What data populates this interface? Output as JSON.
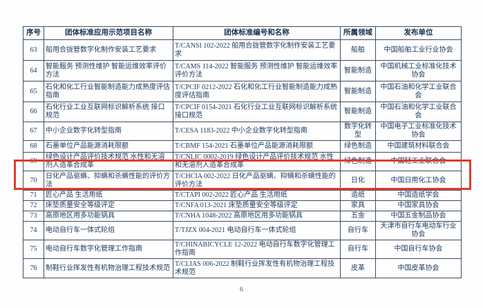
{
  "page": {
    "number": "6"
  },
  "colors": {
    "highlight_red": "#e23b2e",
    "text_navy": "#1e3d61",
    "border": "#3f4c5e"
  },
  "table": {
    "headers": [
      "序号",
      "团体标准应用示范项目名称",
      "团体标准编号和名称",
      "所属领域",
      "发布单位"
    ],
    "highlight": {
      "row_no": "70",
      "color": "#e23b2e"
    },
    "rows": [
      {
        "no": "63",
        "project": "船用合拢管数字化制作安装工艺要求",
        "standard": "T/CANSI 102-2022 船用合拢管数字化制作安装工艺要求",
        "field": "船舶",
        "publisher": "中国船舶工业行业协会"
      },
      {
        "no": "64",
        "project": "智能服务 预测性维护 智能运维效率评价方法",
        "standard": "T/CAMS 114-2022 智能服务 预测性维护 智能运维效率评价方法",
        "field": "智能制造",
        "publisher": "中国机械工业标准化技术协会"
      },
      {
        "no": "65",
        "project": "石化和化工行业智能制造能力成熟度评估指南",
        "standard": "T/CPCIF 0212-2022 石化和化工行业智能制造能力成熟度评估指南",
        "field": "智能制造",
        "publisher": "中国石油和化学工业联合会"
      },
      {
        "no": "66",
        "project": "石化行业工业互联网标识解析系统 接口规范",
        "standard": "T/CPCIF 0154-2021 石化行业工业互联网标识解析系统 接口规范",
        "field": "智能制造",
        "publisher": "中国石油和化学工业联合会"
      },
      {
        "no": "67",
        "project": "中小企业数字化转型指南",
        "standard": "T/CESA 1183-2022 中小企业数字化转型指南",
        "field": "数字化转型",
        "publisher": "中国电子工业标准化技术协会"
      },
      {
        "no": "68",
        "project": "石墨单位产品能源消耗限额",
        "standard": "T/CBMF 154-2021 石墨单位产品能源消耗限额",
        "field": "绿色制造",
        "publisher": "中国建筑材料联合会"
      },
      {
        "no": "69",
        "project": "绿色设计产品评价技术规范 水性和无溶剂人造革合成革",
        "standard": "T/CNLIC 0002-2019 绿色设计产品评价技术规范 水性和无溶剂人造革合成革",
        "field": "绿色制造",
        "publisher": "中国轻工业联合会"
      },
      {
        "no": "70",
        "project": "日化产品驱螨、抑螨和杀螨性能的评价方法",
        "standard": "T/CHCIA 002-2022 日化产品驱螨、抑螨和杀螨性能的评价方法",
        "field": "日化",
        "publisher": "中国日用化工协会"
      },
      {
        "no": "71",
        "project": "匠心产品 生活用纸",
        "standard": "T/CTAPI 002-2022 匠心产品 生活用纸",
        "field": "造纸",
        "publisher": "中国造纸学会"
      },
      {
        "no": "72",
        "project": "床垫质量安全等级评定",
        "standard": "T/CNFA 013-2021 床垫质量安全等级评定",
        "field": "家具",
        "publisher": "中国家具协会"
      },
      {
        "no": "73",
        "project": "高原地区用多功能锅具",
        "standard": "T/CNHA 1048-2022 高原地区用多功能锅具",
        "field": "五金",
        "publisher": "中国五金制品协会"
      },
      {
        "no": "74",
        "project": "电动自行车一体式轮组",
        "standard": "T/TJZX 004-2021 电动自行车一体式轮组",
        "field": "自行车",
        "publisher": "天津市自行车电动车行业协会"
      },
      {
        "no": "75",
        "project": "电动自行车数字化管理工作指南",
        "standard": "T/CHINABICYCLE 12-2022 电动自行车数字化管理工作指南",
        "field": "自行车",
        "publisher": "中国自行车协会"
      },
      {
        "no": "76",
        "project": "制鞋行业挥发性有机物治理工程技术规范",
        "standard": "T/CLIAS 006-2022 制鞋行业挥发性有机物治理工程技术规范",
        "field": "皮革",
        "publisher": "中国皮革协会"
      }
    ]
  }
}
